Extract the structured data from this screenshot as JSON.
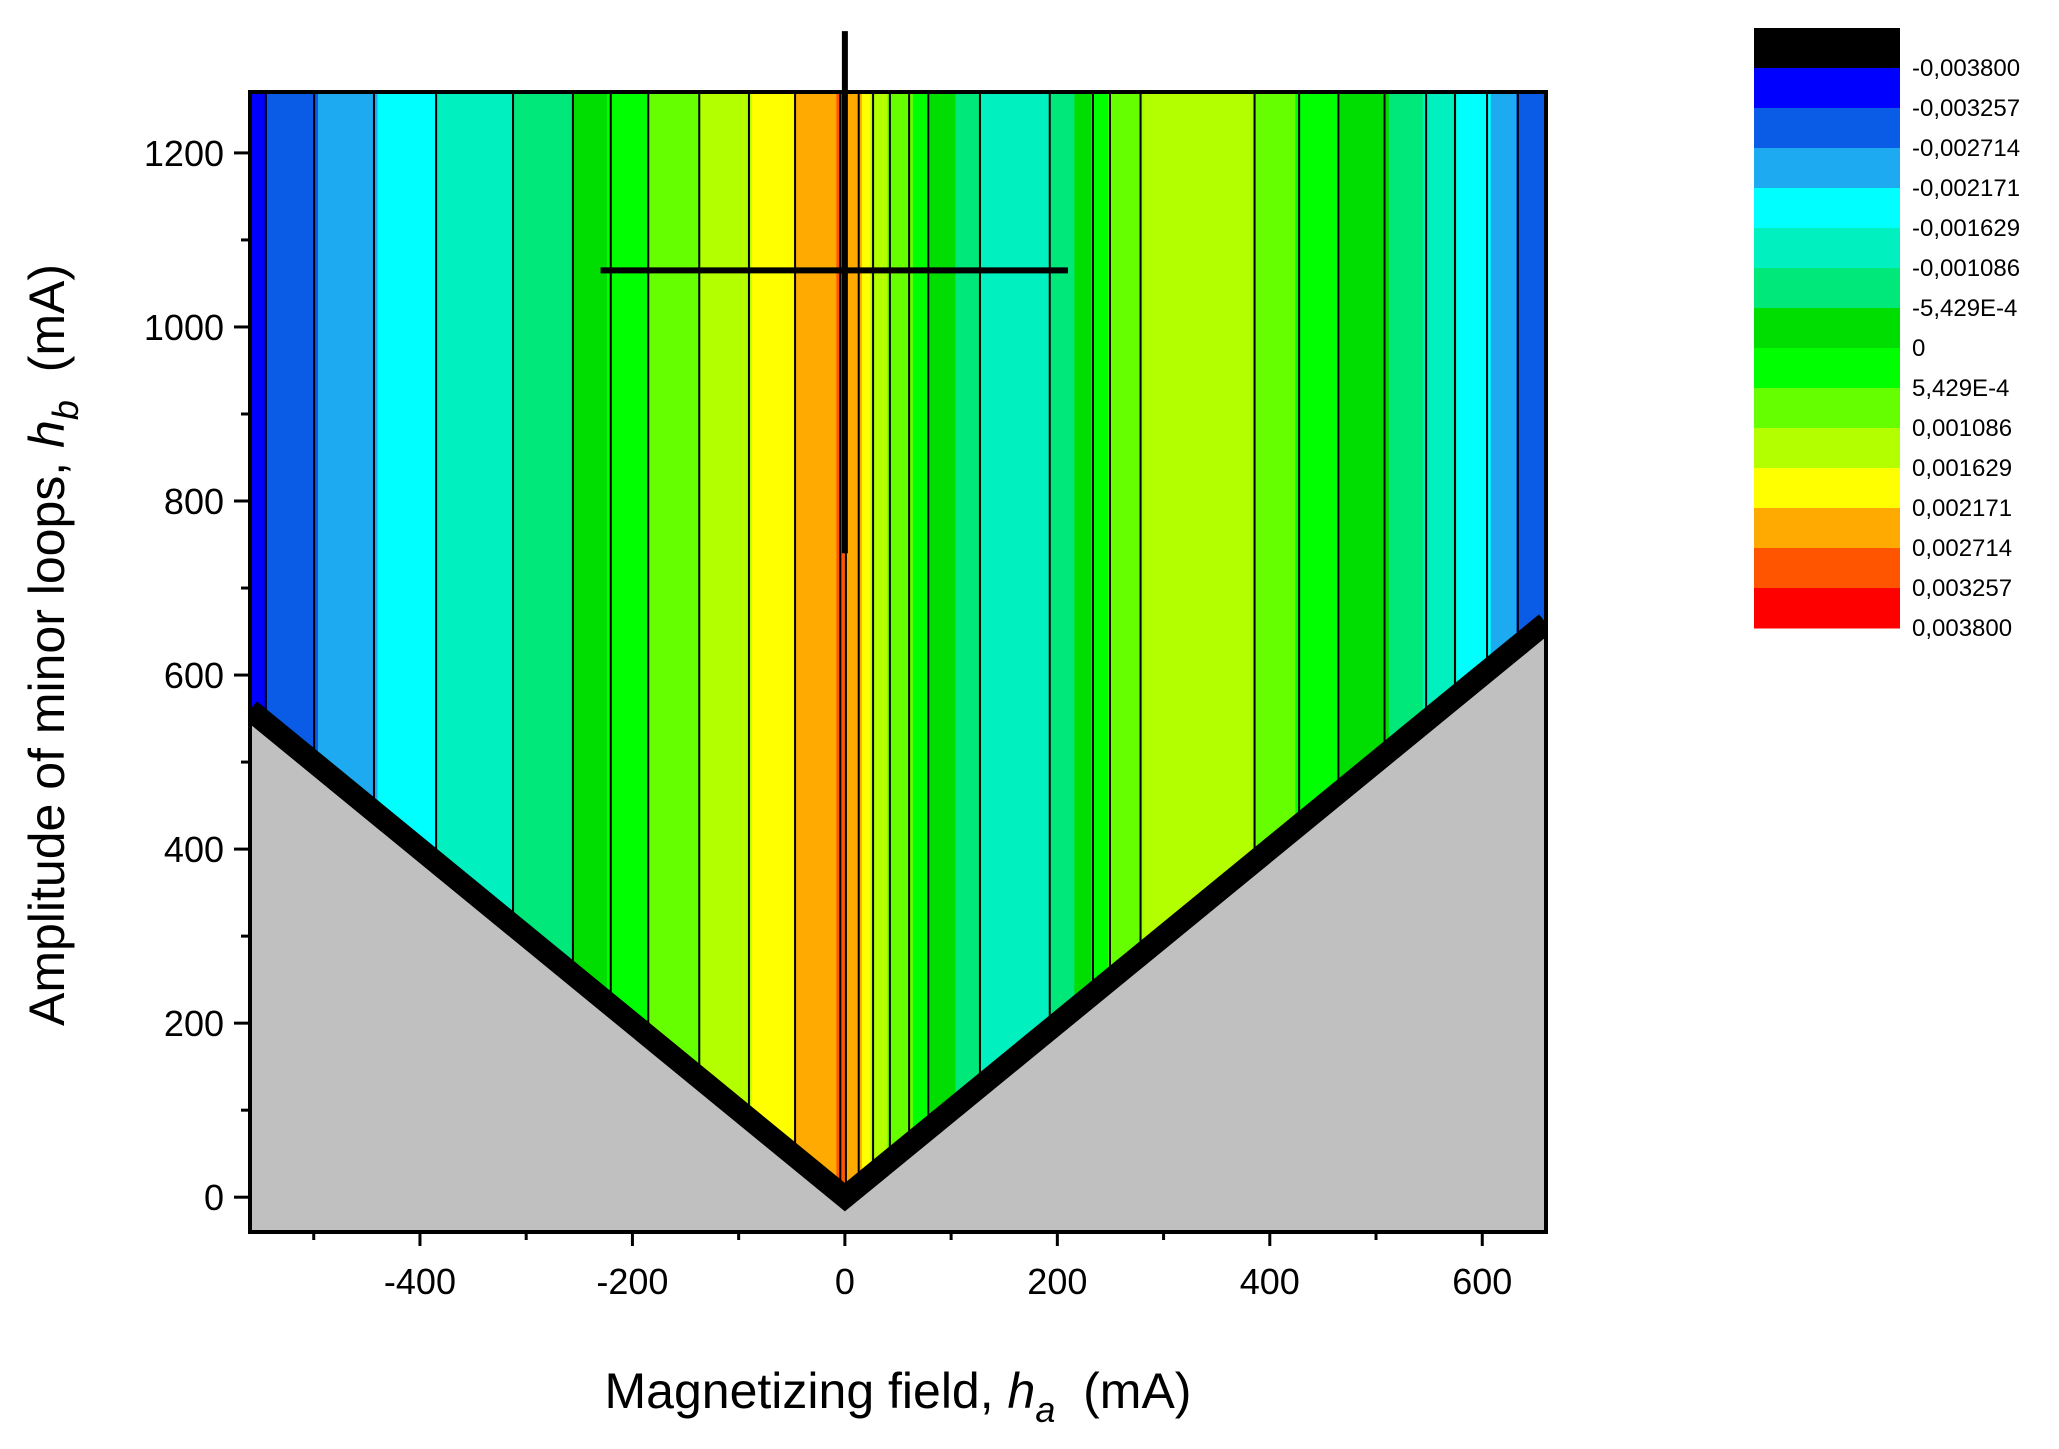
{
  "chart_data": {
    "type": "filled-contour",
    "xlabel": {
      "prefix": "Magnetizing field, ",
      "var": "h",
      "sub": "a",
      "unit": "  (mA)"
    },
    "ylabel": {
      "prefix": "Amplitude of minor loops,  ",
      "var": "h",
      "sub": "b",
      "unit": "  (mA)"
    },
    "xlim": [
      -560,
      660
    ],
    "ylim": [
      -40,
      1270
    ],
    "x_ticks": [
      -400,
      -200,
      0,
      200,
      400,
      600
    ],
    "x_tick_labels": [
      "-400",
      "-200",
      "0",
      "200",
      "400",
      "600"
    ],
    "y_ticks": [
      0,
      200,
      400,
      600,
      800,
      1000,
      1200
    ],
    "y_tick_labels": [
      "0",
      "200",
      "400",
      "600",
      "800",
      "1000",
      "1200"
    ],
    "valid_region": "h_b >= |h_a|",
    "invalid_region_color": "#c0c0c0",
    "crosshair": {
      "x": 0,
      "y": 1065,
      "x_from": -230,
      "x_to": 210,
      "y_from": 740,
      "y_to": 1340
    },
    "legend": {
      "levels": [
        "-0,003800",
        "-0,003257",
        "-0,002714",
        "-0,002171",
        "-0,001629",
        "-0,001086",
        "-5,429E-4",
        "0",
        "5,429E-4",
        "0,001086",
        "0,001629",
        "0,002171",
        "0,002714",
        "0,003257",
        "0,003800"
      ],
      "colors": [
        "#000000",
        "#0000ff",
        "#0a5ce6",
        "#1eaaf0",
        "#00ffff",
        "#00f0c0",
        "#00e77a",
        "#00dd00",
        "#00ff00",
        "#66ff00",
        "#b3ff00",
        "#ffff00",
        "#ffaa00",
        "#ff5500",
        "#ff0000"
      ]
    },
    "profile": {
      "x": [
        -560,
        -520,
        -480,
        -440,
        -400,
        -360,
        -320,
        -280,
        -240,
        -200,
        -160,
        -120,
        -80,
        -40,
        -20,
        0,
        20,
        40,
        60,
        80,
        100,
        120,
        140,
        160,
        180,
        200,
        220,
        240,
        260,
        300,
        340,
        380,
        420,
        460,
        500,
        540,
        580,
        620,
        660
      ],
      "value": [
        -0.0029,
        -0.0024,
        -0.00195,
        -0.0016,
        -0.0012,
        -0.0009,
        -0.0006,
        -0.0003,
        0.0002,
        0.0009,
        0.0014,
        0.0018,
        0.0023,
        0.0028,
        0.0031,
        0.0033,
        0.0024,
        0.0017,
        0.0011,
        0.0005,
        0.0,
        -0.0004,
        -0.0008,
        -0.001,
        -0.0008,
        -0.0004,
        0.0,
        0.0008,
        0.0014,
        0.0019,
        0.002,
        0.0017,
        0.0012,
        0.0006,
        0.0001,
        -0.0004,
        -0.0012,
        -0.0019,
        -0.0027
      ]
    }
  }
}
